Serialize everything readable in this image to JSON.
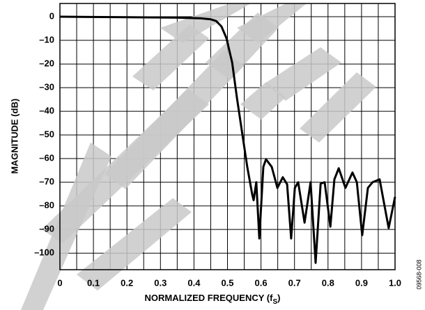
{
  "chart_data": {
    "type": "line",
    "ylabel": "MAGNITUDE (dB)",
    "xlabel": "NORMALIZED FREQUENCY (f",
    "xlabel_sub": "S",
    "xlabel_end": ")",
    "figure_id": "09568-008",
    "xlim": [
      0,
      1
    ],
    "ylim": [
      -107,
      5.6
    ],
    "xticks": [
      0,
      0.1,
      0.2,
      0.3,
      0.4,
      0.5,
      0.6,
      0.7,
      0.8,
      0.9,
      {
        "value": 1,
        "label": "1.0"
      }
    ],
    "xgrid": [
      0.05,
      0.15,
      0.25,
      0.35,
      0.45,
      0.55,
      0.65,
      0.75,
      0.85,
      0.95
    ],
    "yticks": [
      0,
      {
        "value": -10,
        "label": "–10"
      },
      {
        "value": -20,
        "label": "–20"
      },
      {
        "value": -30,
        "label": "–30"
      },
      {
        "value": -40,
        "label": "–40"
      },
      {
        "value": -50,
        "label": "–50"
      },
      {
        "value": -60,
        "label": "–60"
      },
      {
        "value": -70,
        "label": "–70"
      },
      {
        "value": -80,
        "label": "–80"
      },
      {
        "value": -90,
        "label": "–90"
      },
      {
        "value": -100,
        "label": "–100"
      }
    ],
    "grid": true,
    "series": [
      {
        "color": "#000000",
        "x": [
          0,
          0.2,
          0.35,
          0.42,
          0.45,
          0.466,
          0.482,
          0.497,
          0.514,
          0.528,
          0.545,
          0.559,
          0.574,
          0.578,
          0.586,
          0.595,
          0.607,
          0.615,
          0.632,
          0.649,
          0.665,
          0.678,
          0.69,
          0.701,
          0.711,
          0.73,
          0.748,
          0.763,
          0.778,
          0.79,
          0.807,
          0.819,
          0.832,
          0.852,
          0.873,
          0.886,
          0.902,
          0.919,
          0.933,
          0.954,
          0.981,
          1.0
        ],
        "values": [
          0,
          -0.2,
          -0.4,
          -0.7,
          -1.1,
          -1.8,
          -4.1,
          -9.1,
          -19.4,
          -34.1,
          -50.3,
          -63.5,
          -75.3,
          -77.6,
          -70,
          -93.8,
          -63.5,
          -60.3,
          -63.5,
          -72.4,
          -67.9,
          -70.9,
          -93.8,
          -72.4,
          -70,
          -87.1,
          -70,
          -104.1,
          -70.6,
          -70,
          -88.8,
          -68.8,
          -64.1,
          -72.4,
          -65.9,
          -70,
          -92.4,
          -72.4,
          -70,
          -68.8,
          -89.4,
          -76.2
        ]
      }
    ]
  }
}
